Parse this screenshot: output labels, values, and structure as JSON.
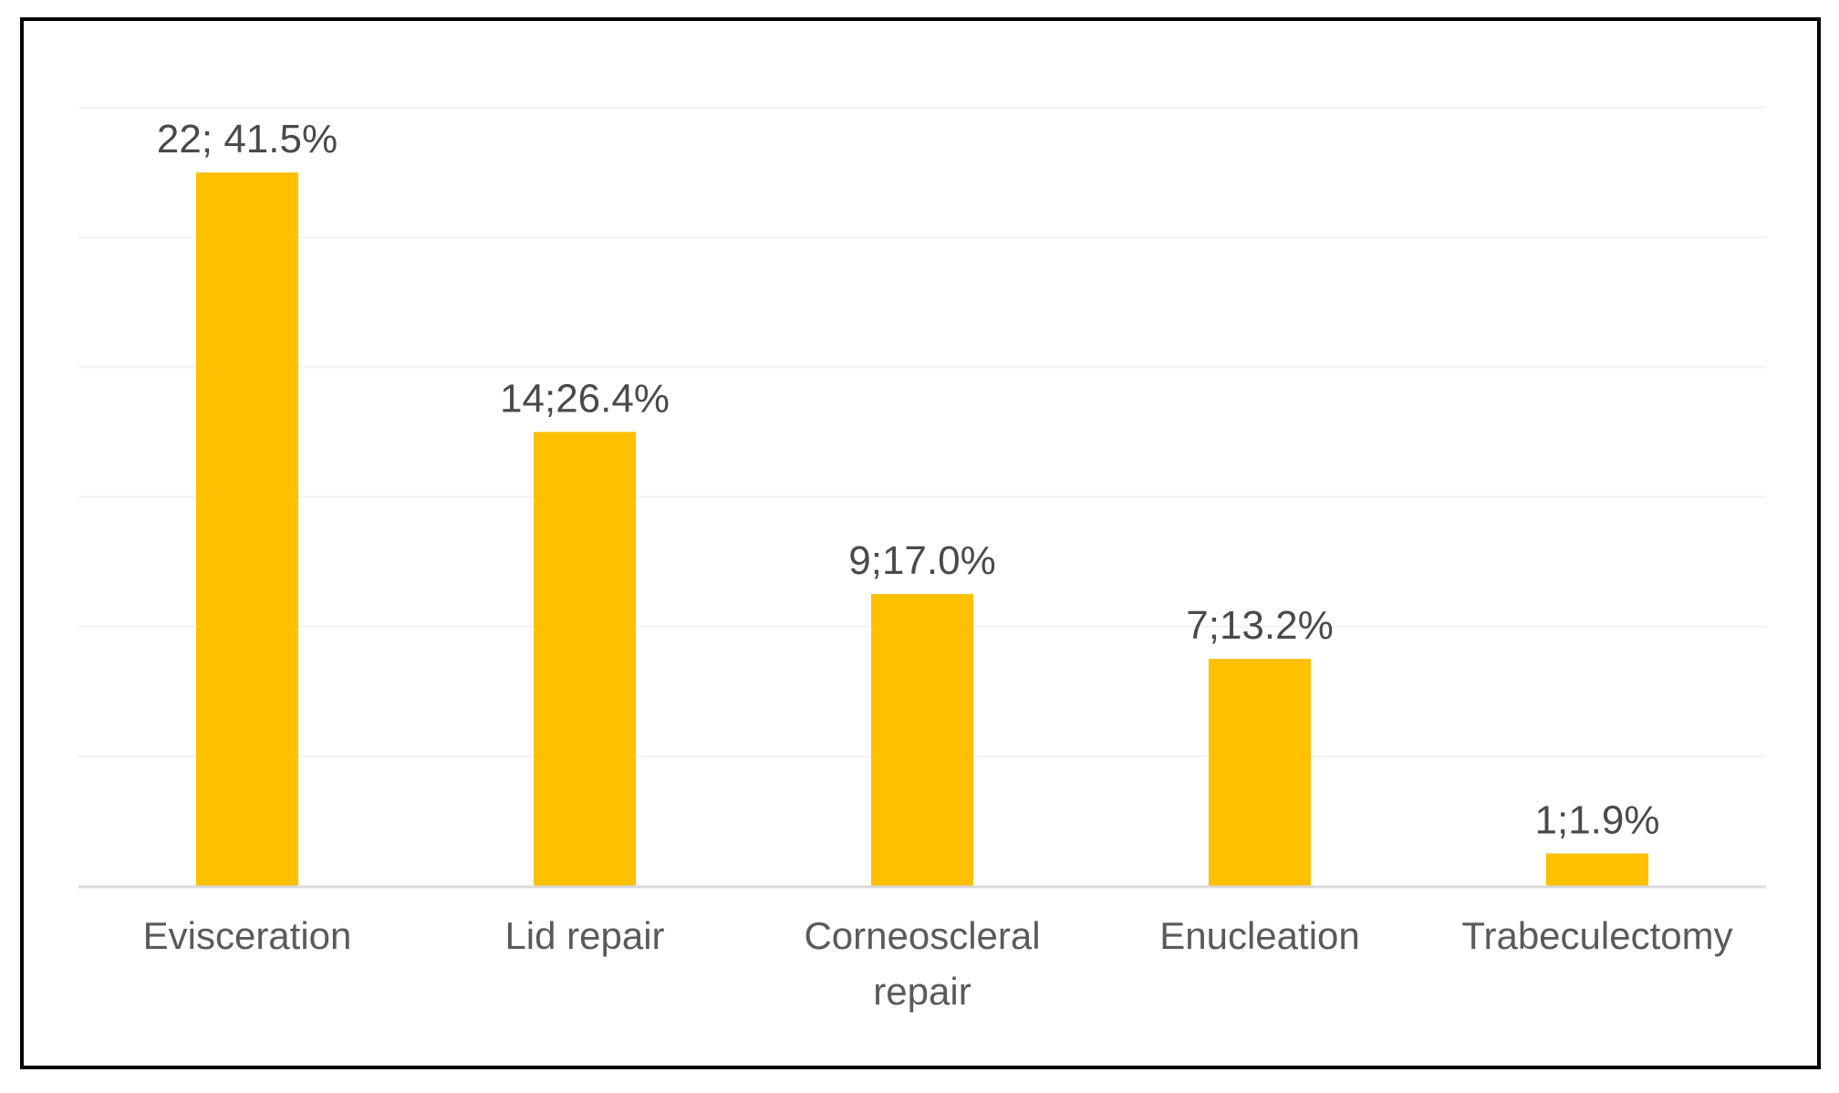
{
  "chart_data": {
    "type": "bar",
    "categories": [
      "Evisceration",
      "Lid repair",
      "Corneoscleral repair",
      "Enucleation",
      "Trabeculectomy"
    ],
    "category_lines": [
      [
        "Evisceration"
      ],
      [
        "Lid repair"
      ],
      [
        "Corneoscleral",
        "repair"
      ],
      [
        "Enucleation"
      ],
      [
        "Trabeculectomy"
      ]
    ],
    "values": [
      22,
      14,
      9,
      7,
      1
    ],
    "data_labels": [
      "22; 41.5%",
      "14;26.4%",
      "9;17.0%",
      "7;13.2%",
      "1;1.9%"
    ],
    "ylim": [
      0,
      24
    ],
    "grid": true,
    "colors": {
      "bar": "#FFC000",
      "axis": "#d9d9d9",
      "grid": "#f2f2f2",
      "border": "#000000"
    }
  }
}
